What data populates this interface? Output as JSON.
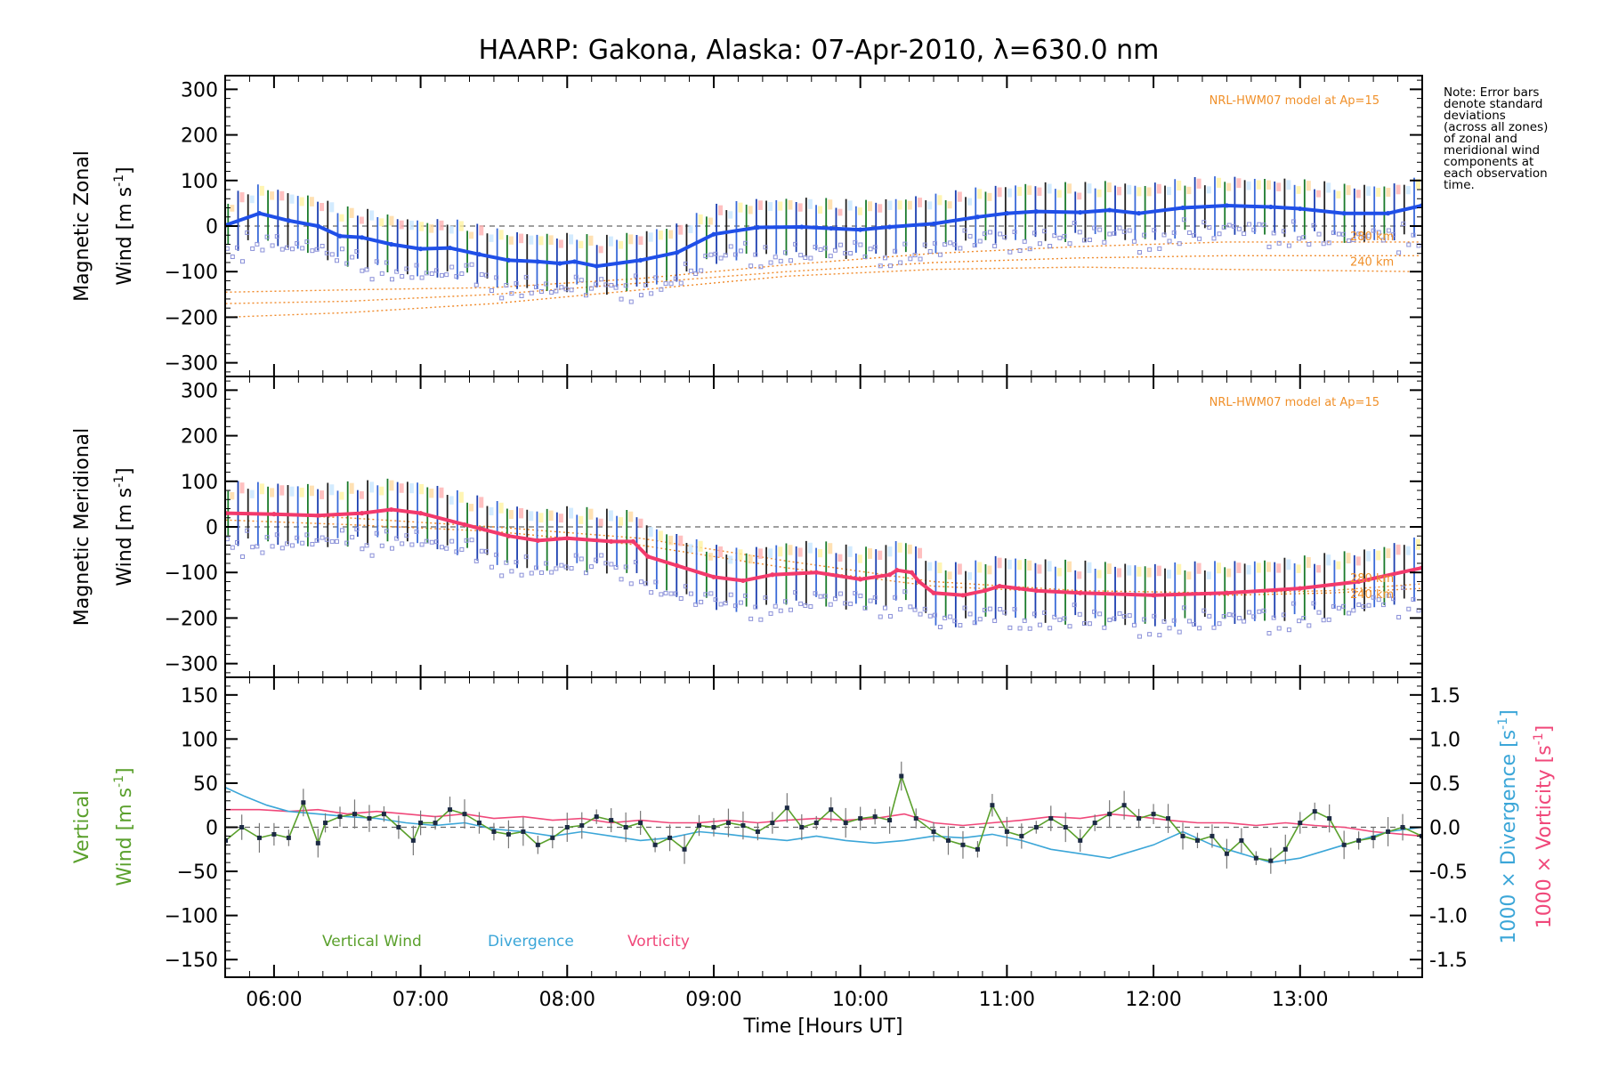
{
  "chart_data": {
    "title": "HAARP: Gakona,  Alaska: 07-Apr-2010, λ=630.0 nm",
    "note": "Note: Error bars denote standard deviations (across all zones) of zonal and meridional wind components at each observation time.",
    "xlabel": "Time [Hours UT]",
    "xrange": [
      "05:40",
      "13:50"
    ],
    "x_ticks": [
      "06:00",
      "07:00",
      "08:00",
      "09:00",
      "10:00",
      "11:00",
      "12:00",
      "13:00"
    ],
    "x_tick_hours": [
      6,
      7,
      8,
      9,
      10,
      11,
      12,
      13
    ],
    "panels": [
      {
        "id": "zonal",
        "type": "line",
        "ylabel_1": "Magnetic Zonal",
        "ylabel_2": "Wind [m s",
        "ylabel_sup": "-1",
        "ylabel_close": "]",
        "ylim": [
          -330,
          330
        ],
        "y_ticks": [
          300,
          200,
          100,
          0,
          -100,
          -200,
          -300
        ],
        "model_label": "NRL-HWM07 model at Ap=15",
        "model_height_labels": [
          "280 km",
          "240 km"
        ],
        "series": {
          "color": "#1f4fe8",
          "x_hours": [
            5.67,
            5.9,
            6.1,
            6.3,
            6.45,
            6.6,
            6.8,
            7.0,
            7.2,
            7.4,
            7.6,
            7.8,
            7.95,
            8.05,
            8.2,
            8.5,
            8.75,
            9.0,
            9.3,
            9.6,
            9.8,
            10.0,
            10.2,
            10.5,
            10.8,
            11.0,
            11.2,
            11.5,
            11.7,
            11.9,
            12.2,
            12.5,
            12.8,
            13.0,
            13.3,
            13.6,
            13.83
          ],
          "values": [
            2,
            28,
            12,
            0,
            -22,
            -25,
            -40,
            -50,
            -48,
            -62,
            -75,
            -78,
            -82,
            -78,
            -88,
            -75,
            -58,
            -18,
            -3,
            -2,
            -5,
            -8,
            -2,
            5,
            20,
            28,
            32,
            30,
            35,
            28,
            40,
            45,
            42,
            38,
            28,
            28,
            45
          ],
          "error_bar": 60,
          "model_curves": [
            {
              "x_hours": [
                5.67,
                6.5,
                7.5,
                8.5,
                9.5,
                10.5,
                11.5,
                12.5,
                13.83
              ],
              "values": [
                -145,
                -140,
                -135,
                -115,
                -85,
                -60,
                -45,
                -35,
                -35
              ]
            },
            {
              "x_hours": [
                5.67,
                6.5,
                7.5,
                8.5,
                9.5,
                10.5,
                11.5,
                12.5,
                13.83
              ],
              "values": [
                -170,
                -165,
                -150,
                -125,
                -100,
                -80,
                -70,
                -65,
                -65
              ]
            },
            {
              "x_hours": [
                5.67,
                6.5,
                7.5,
                8.5,
                9.5,
                10.5,
                11.5,
                12.5,
                13.83
              ],
              "values": [
                -200,
                -190,
                -170,
                -140,
                -110,
                -95,
                -90,
                -95,
                -100
              ]
            }
          ]
        }
      },
      {
        "id": "meridional",
        "type": "line",
        "ylabel_1": "Magnetic Meridional",
        "ylabel_2": "Wind [m s",
        "ylabel_sup": "-1",
        "ylabel_close": "]",
        "ylim": [
          -330,
          330
        ],
        "y_ticks": [
          300,
          200,
          100,
          0,
          -100,
          -200,
          -300
        ],
        "model_label": "NRL-HWM07 model at Ap=15",
        "model_height_labels": [
          "280 km",
          "240 km"
        ],
        "series": {
          "color": "#f23a6c",
          "x_hours": [
            5.67,
            6.0,
            6.3,
            6.6,
            6.8,
            7.0,
            7.3,
            7.6,
            7.8,
            8.0,
            8.3,
            8.45,
            8.55,
            8.75,
            9.0,
            9.2,
            9.4,
            9.7,
            10.0,
            10.2,
            10.25,
            10.35,
            10.4,
            10.5,
            10.7,
            10.85,
            10.95,
            11.2,
            11.5,
            12.0,
            12.5,
            13.0,
            13.4,
            13.83
          ],
          "values": [
            30,
            28,
            25,
            30,
            38,
            30,
            5,
            -20,
            -30,
            -25,
            -32,
            -32,
            -65,
            -85,
            -110,
            -118,
            -105,
            -100,
            -115,
            -105,
            -95,
            -100,
            -120,
            -145,
            -150,
            -140,
            -130,
            -140,
            -145,
            -150,
            -145,
            -135,
            -120,
            -90
          ],
          "error_bar": 65,
          "model_curves": [
            {
              "x_hours": [
                5.67,
                6.5,
                7.5,
                8.5,
                9.5,
                10.5,
                11.5,
                12.5,
                13.2,
                13.83
              ],
              "values": [
                30,
                20,
                0,
                -25,
                -75,
                -120,
                -140,
                -145,
                -140,
                -125
              ]
            },
            {
              "x_hours": [
                5.67,
                6.5,
                7.5,
                8.5,
                9.5,
                10.5,
                11.5,
                12.5,
                13.2,
                13.83
              ],
              "values": [
                15,
                5,
                -10,
                -40,
                -90,
                -130,
                -145,
                -150,
                -145,
                -135
              ]
            }
          ]
        }
      },
      {
        "id": "vertical",
        "type": "line",
        "ylabel_1": "Vertical",
        "ylabel_2": "Wind [m s",
        "ylabel_sup": "-1",
        "ylabel_close": "]",
        "ylim": [
          -170,
          170
        ],
        "y_ticks": [
          150,
          100,
          50,
          0,
          -50,
          -100,
          -150
        ],
        "right_ylim": [
          -1.7,
          1.7
        ],
        "right_y_ticks": [
          1.5,
          1.0,
          0.5,
          0.0,
          -0.5,
          -1.0,
          -1.5
        ],
        "right_labels": [
          {
            "text": "1000 × Divergence [s",
            "sup": "-1",
            "close": "]",
            "color": "#3ba6d8"
          },
          {
            "text": "1000 × Vorticity [s",
            "sup": "-1",
            "close": "]",
            "color": "#f0487a"
          }
        ],
        "legend": [
          {
            "label": "Vertical Wind",
            "color": "#5aa02c"
          },
          {
            "label": "Divergence",
            "color": "#3ba6d8"
          },
          {
            "label": "Vorticity",
            "color": "#f0487a"
          }
        ],
        "vertical_wind": {
          "color": "#5aa02c",
          "x_hours": [
            5.67,
            5.78,
            5.9,
            6.0,
            6.1,
            6.2,
            6.3,
            6.35,
            6.45,
            6.55,
            6.65,
            6.75,
            6.85,
            6.95,
            7.0,
            7.1,
            7.2,
            7.3,
            7.4,
            7.5,
            7.6,
            7.7,
            7.8,
            7.9,
            8.0,
            8.1,
            8.2,
            8.3,
            8.4,
            8.5,
            8.6,
            8.7,
            8.8,
            8.9,
            9.0,
            9.1,
            9.2,
            9.3,
            9.4,
            9.5,
            9.6,
            9.7,
            9.8,
            9.9,
            10.0,
            10.1,
            10.2,
            10.28,
            10.38,
            10.5,
            10.6,
            10.7,
            10.8,
            10.9,
            11.0,
            11.1,
            11.2,
            11.3,
            11.4,
            11.5,
            11.6,
            11.7,
            11.8,
            11.9,
            12.0,
            12.1,
            12.2,
            12.3,
            12.4,
            12.5,
            12.6,
            12.7,
            12.8,
            12.9,
            13.0,
            13.1,
            13.2,
            13.3,
            13.4,
            13.5,
            13.6,
            13.7,
            13.83
          ],
          "values": [
            -15,
            0,
            -12,
            -8,
            -12,
            28,
            -18,
            5,
            12,
            15,
            10,
            15,
            0,
            -15,
            5,
            5,
            20,
            15,
            5,
            -5,
            -8,
            -5,
            -20,
            -12,
            0,
            2,
            12,
            8,
            0,
            5,
            -20,
            -12,
            -25,
            2,
            0,
            5,
            2,
            -5,
            5,
            22,
            0,
            5,
            20,
            5,
            10,
            12,
            8,
            58,
            10,
            -5,
            -15,
            -20,
            -25,
            25,
            -5,
            -10,
            0,
            10,
            0,
            -15,
            5,
            15,
            25,
            10,
            15,
            10,
            -10,
            -15,
            -10,
            -30,
            -15,
            -35,
            -38,
            -25,
            5,
            18,
            10,
            -20,
            -15,
            -12,
            -5,
            0,
            -10
          ],
          "error_bar": 12
        },
        "divergence": {
          "color": "#3ba6d8",
          "x_hours": [
            5.67,
            5.8,
            5.95,
            6.1,
            6.3,
            6.5,
            6.7,
            6.9,
            7.1,
            7.3,
            7.5,
            7.7,
            7.9,
            8.1,
            8.3,
            8.5,
            8.7,
            8.9,
            9.1,
            9.3,
            9.5,
            9.7,
            9.9,
            10.1,
            10.3,
            10.5,
            10.7,
            10.9,
            11.1,
            11.3,
            11.5,
            11.7,
            11.8,
            12.0,
            12.2,
            12.4,
            12.6,
            12.8,
            13.0,
            13.2,
            13.4,
            13.6,
            13.83
          ],
          "values": [
            0.45,
            0.35,
            0.25,
            0.18,
            0.15,
            0.12,
            0.1,
            0.05,
            0.02,
            0.05,
            -0.02,
            -0.05,
            -0.1,
            -0.05,
            -0.1,
            -0.15,
            -0.12,
            -0.05,
            -0.08,
            -0.12,
            -0.15,
            -0.1,
            -0.15,
            -0.18,
            -0.15,
            -0.1,
            -0.12,
            -0.08,
            -0.15,
            -0.25,
            -0.3,
            -0.35,
            -0.3,
            -0.2,
            -0.05,
            -0.2,
            -0.3,
            -0.4,
            -0.35,
            -0.25,
            -0.15,
            -0.05,
            0.0
          ],
          "right_axis": true
        },
        "vorticity": {
          "color": "#f0487a",
          "x_hours": [
            5.67,
            5.9,
            6.1,
            6.3,
            6.5,
            6.7,
            6.9,
            7.1,
            7.3,
            7.5,
            7.7,
            7.9,
            8.1,
            8.3,
            8.5,
            8.7,
            8.9,
            9.1,
            9.3,
            9.5,
            9.7,
            9.9,
            10.1,
            10.3,
            10.5,
            10.7,
            10.9,
            11.1,
            11.3,
            11.5,
            11.7,
            11.9,
            12.1,
            12.3,
            12.5,
            12.7,
            12.9,
            13.1,
            13.3,
            13.5,
            13.7,
            13.83
          ],
          "values": [
            0.2,
            0.2,
            0.18,
            0.2,
            0.15,
            0.18,
            0.15,
            0.12,
            0.15,
            0.1,
            0.12,
            0.08,
            0.1,
            0.05,
            0.08,
            0.05,
            0.05,
            0.08,
            0.05,
            0.08,
            0.1,
            0.08,
            0.1,
            0.15,
            0.05,
            0.02,
            0.05,
            0.08,
            0.12,
            0.1,
            0.15,
            0.12,
            0.08,
            0.05,
            0.05,
            0.02,
            0.05,
            0.02,
            0.0,
            -0.05,
            -0.08,
            -0.1
          ],
          "right_axis": true
        }
      }
    ]
  }
}
